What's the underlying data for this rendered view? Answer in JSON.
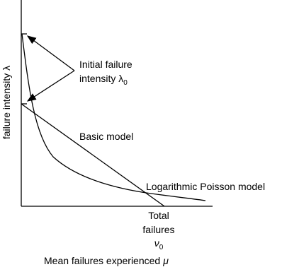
{
  "axes": {
    "y_label": "failure intensity λ",
    "x_label": "Mean failures experienced",
    "x_label_symbol": "μ"
  },
  "annotations": {
    "initial_line1": "Initial failure",
    "initial_line2": "intensity λ",
    "initial_sub": "0",
    "basic_model": "Basic model",
    "log_model": "Logarithmic Poisson model",
    "total_line1": "Total",
    "total_line2": "failures",
    "total_symbol": "ν",
    "total_sub": "0"
  }
}
